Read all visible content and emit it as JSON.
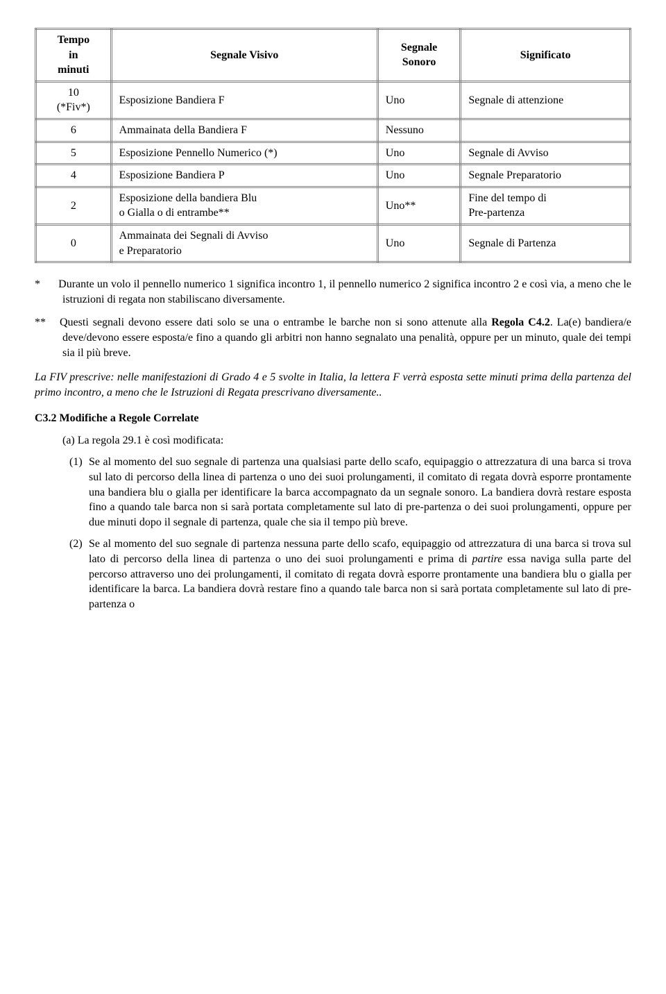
{
  "table": {
    "headers": {
      "col1": "Tempo\nin\nminuti",
      "col2": "Segnale Visivo",
      "col3": "Segnale\nSonoro",
      "col4": "Significato"
    },
    "rows": [
      {
        "c1": "10\n(*Fiv*)",
        "c2": "Esposizione Bandiera F",
        "c3": "Uno",
        "c4": "Segnale di attenzione"
      },
      {
        "c1": "6",
        "c2": "Ammainata della Bandiera F",
        "c3": "Nessuno",
        "c4": ""
      },
      {
        "c1": "5",
        "c2": "Esposizione Pennello Numerico (*)",
        "c3": "Uno",
        "c4": "Segnale di Avviso"
      },
      {
        "c1": "4",
        "c2": "Esposizione Bandiera P",
        "c3": "Uno",
        "c4": "Segnale Preparatorio"
      },
      {
        "c1": "2",
        "c2": "Esposizione della bandiera Blu\no Gialla o di entrambe**",
        "c3": "Uno**",
        "c4": "Fine del tempo di\nPre-partenza"
      },
      {
        "c1": "0",
        "c2": "Ammainata dei Segnali di Avviso\ne Preparatorio",
        "c3": "Uno",
        "c4": "Segnale di Partenza"
      }
    ],
    "border_color": "#808080",
    "background_color": "#ffffff"
  },
  "defs": {
    "star": {
      "label": "*",
      "text": "Durante un volo il pennello numerico 1 significa incontro 1, il pennello numerico 2 significa incontro 2 e così via, a meno che le istruzioni di regata non stabiliscano diversamente."
    },
    "double_star": {
      "label": "**",
      "text_before": "Questi segnali devono essere dati solo se una o entrambe le barche non si sono attenute alla ",
      "bold": "Regola C4.2",
      "text_after": ". La(e) bandiera/e deve/devono essere esposta/e fino a quando gli arbitri non hanno segnalato una penalità, oppure  per un minuto, quale dei tempi sia il più breve."
    }
  },
  "fiv_prescription": "La FIV prescrive:  nelle manifestazioni di Grado 4 e 5 svolte in Italia, la lettera F verrà  esposta sette minuti prima della partenza del primo incontro, a meno che le Istruzioni di Regata prescrivano diversamente..",
  "section": {
    "heading": "C3.2  Modifiche a Regole Correlate",
    "sub_a": "(a) La regola 29.1 è così modificata:",
    "item1": {
      "label": "(1)",
      "text": "Se al momento del suo segnale di partenza una qualsiasi parte dello scafo, equipaggio o attrezzatura di una barca si trova sul lato di percorso della linea di partenza o uno dei suoi prolungamenti, il comitato di regata dovrà esporre prontamente una bandiera blu o gialla per identificare la barca accompagnato da un segnale sonoro. La bandiera dovrà restare esposta fino a quando tale barca non si sarà portata completamente sul lato di pre-partenza o dei suoi prolungamenti, oppure per due minuti dopo il segnale di partenza, quale che sia il tempo più breve."
    },
    "item2": {
      "label": "(2)",
      "text_before": "Se al momento del suo segnale di partenza nessuna parte dello scafo, equipaggio od attrezzatura di una barca si trova sul lato di percorso della linea di partenza o uno dei suoi prolungamenti e prima di ",
      "italic": "partire",
      "text_after": " essa naviga sulla parte del percorso attraverso uno dei prolungamenti, il comitato di regata dovrà esporre prontamente una bandiera blu o gialla per identificare la barca. La bandiera dovrà restare fino a quando tale barca non si sarà portata completamente sul lato di pre-partenza o"
    }
  }
}
